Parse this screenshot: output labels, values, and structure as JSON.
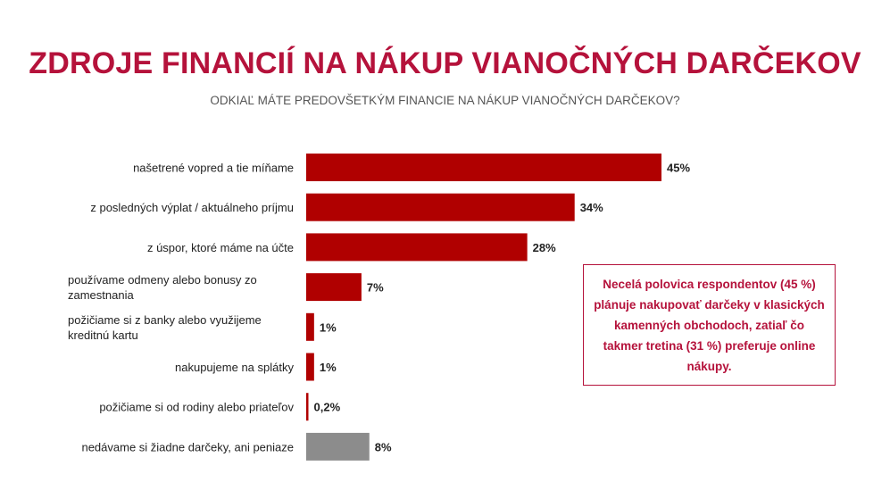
{
  "title": "ZDROJE FINANCIÍ NA NÁKUP VIANOČNÝCH DARČEKOV",
  "subtitle": "ODKIAĽ MÁTE PREDOVŠETKÝM FINANCIE NA NÁKUP VIANOČNÝCH DARČEKOV?",
  "callout": {
    "text": "Necelá polovica respondentov (45 %) plánuje nakupovať darčeky v klasických kamenných obchodoch, zatiaľ čo takmer tretina (31 %) preferuje online nákupy."
  },
  "colors": {
    "accent": "#b5123b",
    "bar": "#b00000",
    "bar_neutral": "#8c8c8c",
    "text": "#222222"
  },
  "chart_data": {
    "type": "bar",
    "orientation": "horizontal",
    "categories": [
      [
        "našetrené vopred a tie míňame"
      ],
      [
        "z posledných výplat / aktuálneho príjmu"
      ],
      [
        "z úspor, ktoré máme na účte"
      ],
      [
        "používame odmeny alebo bonusy zo",
        "zamestnania"
      ],
      [
        "požičiame si z banky alebo využijeme",
        "kreditnú kartu"
      ],
      [
        "nakupujeme na splátky"
      ],
      [
        "požičiame si od rodiny alebo priateľov"
      ],
      [
        "nedávame si žiadne darčeky, ani peniaze"
      ]
    ],
    "values": [
      45,
      34,
      28,
      7,
      1,
      1,
      0.2,
      8
    ],
    "labels": [
      "45%",
      "34%",
      "28%",
      "7%",
      "1%",
      "1%",
      "0,2%",
      "8%"
    ],
    "highlight": [
      false,
      false,
      false,
      false,
      false,
      false,
      false,
      true
    ],
    "xlim": [
      0,
      50
    ]
  }
}
